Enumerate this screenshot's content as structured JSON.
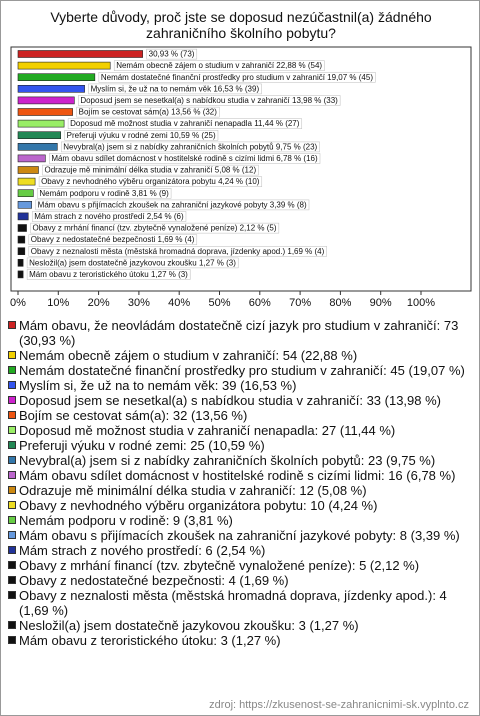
{
  "chart_data": {
    "type": "hbar",
    "title": "Vyberte důvody, proč jste se doposud nezúčastnil(a) žádného zahraničního školního pobytu?",
    "values": [
      30.93,
      22.88,
      19.07,
      16.53,
      13.98,
      13.56,
      11.44,
      10.59,
      9.75,
      6.78,
      5.08,
      4.24,
      3.81,
      3.39,
      2.54,
      2.12,
      1.69,
      1.69,
      1.27,
      1.27
    ],
    "value_labels": [
      "30,93 % (73)",
      "Nemám obecně zájem o studium v zahraničí 22,88 % (54)",
      "Nemám dostatečné finanční prostředky pro studium v zahraničí 19,07 % (45)",
      "Myslím si, že už na to nemám věk 16,53 % (39)",
      "Doposud jsem se nesetkal(a) s nabídkou studia v zahraničí 13,98 % (33)",
      "Bojím se cestovat sám(a) 13,56 % (32)",
      "Doposud mě možnost studia v zahraničí nenapadla 11,44 % (27)",
      "Preferuji výuku v rodné zemi 10,59 % (25)",
      "Nevybral(a) jsem si z nabídky zahraničních školních pobytů 9,75 % (23)",
      "Mám obavu sdílet domácnost v hostitelské rodině s cizími lidmi 6,78 % (16)",
      "Odrazuje mě minimální délka studia v zahraničí 5,08 % (12)",
      "Obavy z nevhodného výběru organizátora pobytu 4,24 % (10)",
      "Nemám podporu v rodině 3,81 % (9)",
      "Mám obavu s přijímacích zkoušek na zahraniční jazykové pobyty 3,39 % (8)",
      "Mám strach z nového prostředí 2,54 % (6)",
      "Obavy z mrhání financí (tzv. zbytečně vynaložené peníze) 2,12 % (5)",
      "Obavy z nedostatečné bezpečnosti 1,69 % (4)",
      "Obavy z neznalosti města (městská hromadná doprava, jízdenky apod.) 1,69 % (4)",
      "Nesložil(a) jsem dostatečně jazykovou zkoušku 1,27 % (3)",
      "Mám obavu z teroristického útoku 1,27 % (3)"
    ],
    "legend_labels": [
      "Mám obavu, že neovládám dostatečně cizí jazyk pro studium v zahraničí: 73 (30,93 %)",
      "Nemám obecně zájem o studium v zahraničí: 54 (22,88 %)",
      "Nemám dostatečné finanční prostředky pro studium v zahraničí: 45 (19,07 %)",
      "Myslím si, že už na to nemám věk: 39 (16,53 %)",
      "Doposud jsem se nesetkal(a) s nabídkou studia v zahraničí: 33 (13,98 %)",
      "Bojím se cestovat sám(a): 32 (13,56 %)",
      "Doposud mě možnost studia v zahraničí nenapadla: 27 (11,44 %)",
      "Preferuji výuku v rodné zemi: 25 (10,59 %)",
      "Nevybral(a) jsem si z nabídky zahraničních školních pobytů: 23 (9,75 %)",
      "Mám obavu sdílet domácnost v hostitelské rodině s cizími lidmi: 16 (6,78 %)",
      "Odrazuje mě minimální délka studia v zahraničí: 12 (5,08 %)",
      "Obavy z nevhodného výběru organizátora pobytu: 10 (4,24 %)",
      "Nemám podporu v rodině: 9 (3,81 %)",
      "Mám obavu s přijímacích zkoušek na zahraniční jazykové pobyty: 8 (3,39 %)",
      "Mám strach z nového prostředí: 6 (2,54 %)",
      "Obavy z mrhání financí (tzv. zbytečně vynaložené peníze): 5 (2,12 %)",
      "Obavy z nedostatečné bezpečnosti: 4 (1,69 %)",
      "Obavy z neznalosti města (městská hromadná doprava, jízdenky apod.): 4 (1,69 %)",
      "Nesložil(a) jsem dostatečně jazykovou zkoušku: 3 (1,27 %)",
      "Mám obavu z teroristického útoku: 3 (1,27 %)"
    ],
    "colors": [
      "#cc2222",
      "#f2d000",
      "#22aa22",
      "#3355ee",
      "#cc22cc",
      "#ee5511",
      "#99ee66",
      "#228855",
      "#3377aa",
      "#bb66cc",
      "#cc8811",
      "#eedd22",
      "#66cc44",
      "#6699dd",
      "#223399",
      "#111111",
      "#111111",
      "#111111",
      "#111111",
      "#111111"
    ],
    "xlim": [
      0,
      100
    ],
    "xticks": [
      {
        "value": 0,
        "label": "0%"
      },
      {
        "value": 10,
        "label": "10%"
      },
      {
        "value": 20,
        "label": "20%"
      },
      {
        "value": 30,
        "label": "30%"
      },
      {
        "value": 40,
        "label": "40%"
      },
      {
        "value": 50,
        "label": "50%"
      },
      {
        "value": 60,
        "label": "60%"
      },
      {
        "value": 70,
        "label": "70%"
      },
      {
        "value": 80,
        "label": "80%"
      },
      {
        "value": 90,
        "label": "90%"
      },
      {
        "value": 100,
        "label": "100%"
      }
    ],
    "source": "zdroj: https://zkusenost-se-zahranicnimi-sk.vyplnto.cz"
  }
}
